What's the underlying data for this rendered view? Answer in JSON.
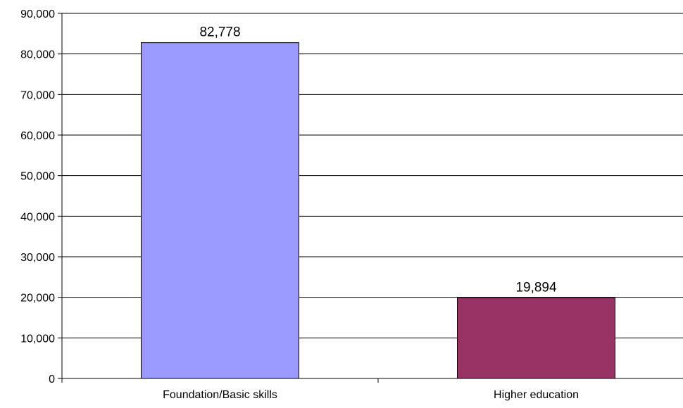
{
  "chart_data": {
    "type": "bar",
    "categories": [
      "Foundation/Basic skills",
      "Higher education"
    ],
    "values": [
      82778,
      19894
    ],
    "data_labels": [
      "82,778",
      "19,894"
    ],
    "colors": [
      "#9999ff",
      "#993366"
    ],
    "ylim": [
      0,
      90000
    ],
    "yticks": [
      0,
      10000,
      20000,
      30000,
      40000,
      50000,
      60000,
      70000,
      80000,
      90000
    ],
    "ytick_labels": [
      "0",
      "10,000",
      "20,000",
      "30,000",
      "40,000",
      "50,000",
      "60,000",
      "70,000",
      "80,000",
      "90,000"
    ],
    "grid": true,
    "legend": false,
    "title": "",
    "xlabel": "",
    "ylabel": ""
  }
}
